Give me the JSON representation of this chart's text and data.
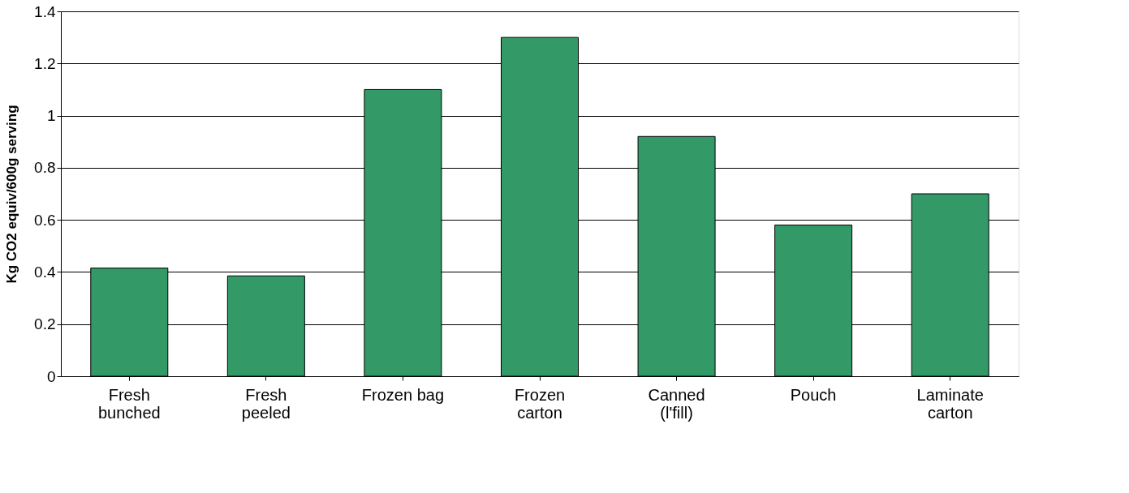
{
  "chart_data": {
    "type": "bar",
    "ylabel": "Kg CO2 equiv/600g serving",
    "categories": [
      "Fresh\nbunched",
      "Fresh\npeeled",
      "Frozen bag",
      "Frozen\ncarton",
      "Canned\n(l'fill)",
      "Pouch",
      "Laminate\ncarton"
    ],
    "values": [
      0.415,
      0.385,
      1.1,
      1.3,
      0.92,
      0.58,
      0.7
    ],
    "color": "#339966",
    "ylim": [
      0,
      1.4
    ],
    "yticks": [
      0,
      0.2,
      0.4,
      0.6,
      0.8,
      1,
      1.2,
      1.4
    ],
    "grid": "y",
    "legend": false
  }
}
